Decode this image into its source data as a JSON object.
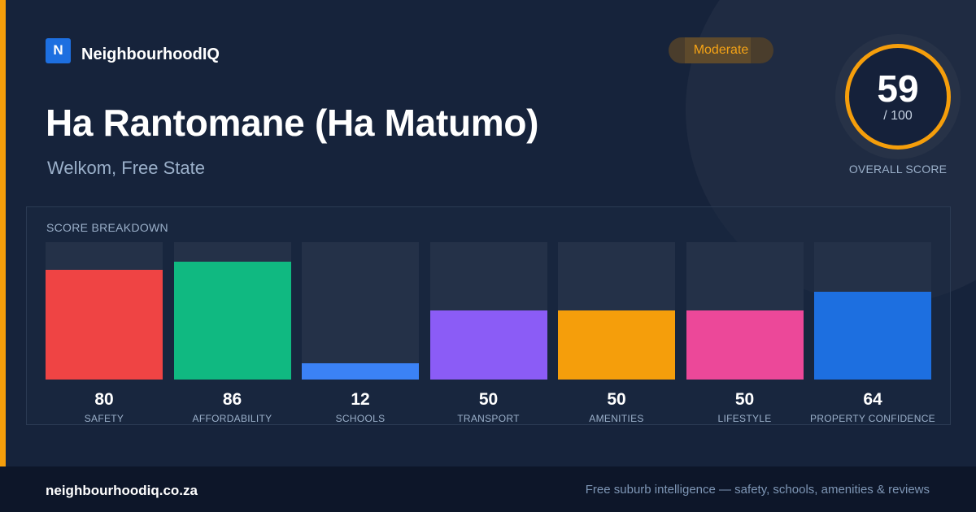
{
  "brand": {
    "logo_letter": "N",
    "name": "NeighbourhoodIQ"
  },
  "suburb": {
    "name": "Ha Rantomane (Ha Matumo)",
    "location": "Welkom, Free State"
  },
  "rating_badge": {
    "label": "Moderate",
    "color": "#f5a316"
  },
  "overall": {
    "score": "59",
    "max_label": "/ 100",
    "caption": "OVERALL SCORE",
    "ring_color": "#f59e0b"
  },
  "breakdown": {
    "title": "SCORE BREAKDOWN",
    "categories": [
      {
        "label": "SAFETY",
        "value": 80,
        "value_text": "80",
        "color": "#ef4444"
      },
      {
        "label": "AFFORDABILITY",
        "value": 86,
        "value_text": "86",
        "color": "#10b981"
      },
      {
        "label": "SCHOOLS",
        "value": 12,
        "value_text": "12",
        "color": "#3b82f6"
      },
      {
        "label": "TRANSPORT",
        "value": 50,
        "value_text": "50",
        "color": "#8b5cf6"
      },
      {
        "label": "AMENITIES",
        "value": 50,
        "value_text": "50",
        "color": "#f59e0b"
      },
      {
        "label": "LIFESTYLE",
        "value": 50,
        "value_text": "50",
        "color": "#ec4899"
      },
      {
        "label": "PROPERTY CONFIDENCE",
        "value": 64,
        "value_text": "64",
        "color": "#1d6fe0"
      }
    ]
  },
  "footer": {
    "url": "neighbourhoodiq.co.za",
    "tagline": "Free suburb intelligence — safety, schools, amenities & reviews"
  },
  "theme": {
    "accent": "#f59e0b",
    "background": "#16233b",
    "footer_background": "#0d1629"
  }
}
